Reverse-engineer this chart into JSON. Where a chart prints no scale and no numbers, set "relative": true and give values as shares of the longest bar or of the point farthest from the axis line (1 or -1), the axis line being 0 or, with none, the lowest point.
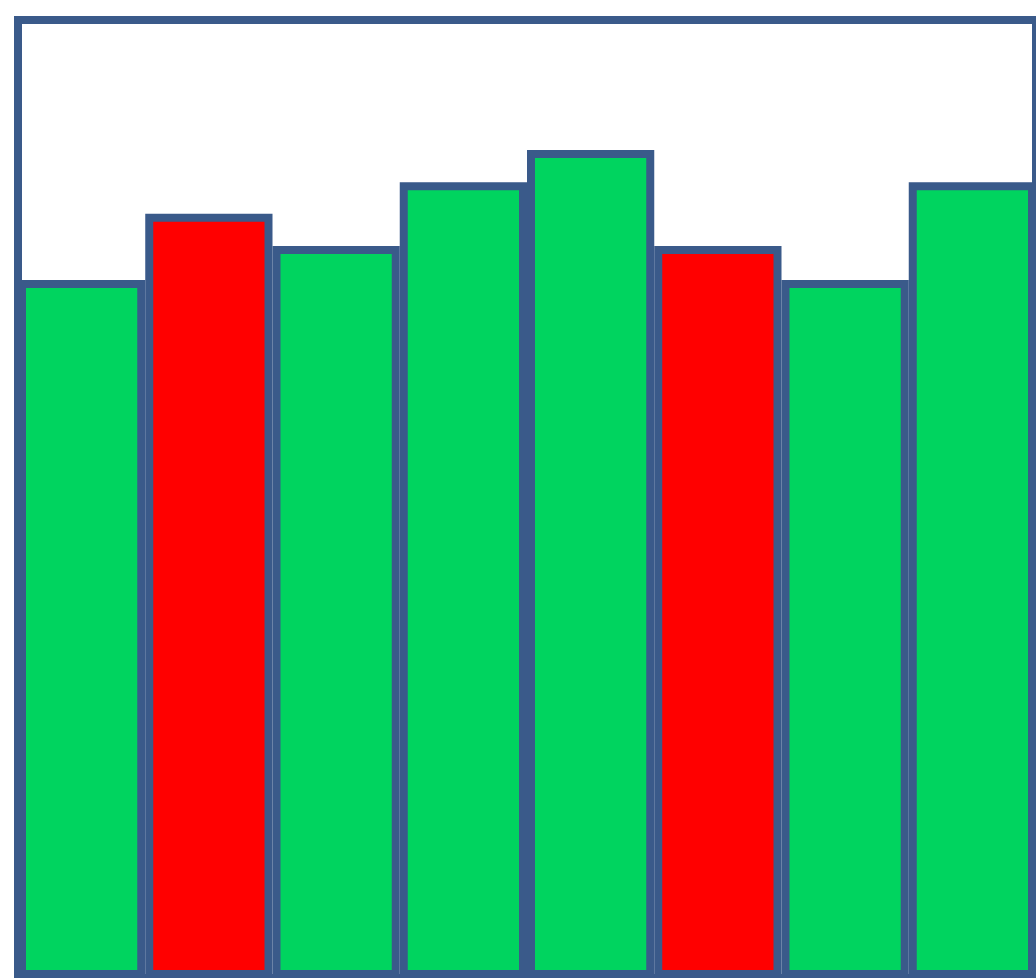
{
  "chart_data": {
    "type": "bar",
    "relative": true,
    "categories": [
      null,
      null,
      null,
      null,
      null,
      null,
      null,
      null
    ],
    "values": [
      0.843,
      0.923,
      0.884,
      0.961,
      1,
      0.884,
      0.843,
      0.961
    ],
    "colors": [
      "#00d45f",
      "#ff0000",
      "#00d45f",
      "#00d45f",
      "#00d45f",
      "#ff0000",
      "#00d45f",
      "#00d45f"
    ]
  }
}
